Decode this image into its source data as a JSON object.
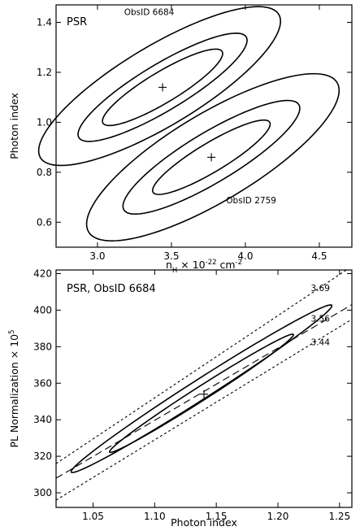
{
  "chart_data": [
    {
      "type": "contour",
      "title": "PSR",
      "xlabel": {
        "main": "n",
        "sub": "H",
        "mid": " × 10",
        "sup1": "-22",
        "unit": " cm",
        "sup2": "-2"
      },
      "ylabel": "Photon index",
      "xlim": [
        2.72,
        4.72
      ],
      "ylim": [
        0.5,
        1.47
      ],
      "xticks": [
        3.0,
        3.5,
        4.0,
        4.5
      ],
      "xticklabels": [
        "3.0",
        "3.5",
        "4.0",
        "4.5"
      ],
      "yticks": [
        0.6,
        0.8,
        1.0,
        1.2,
        1.4
      ],
      "yticklabels": [
        "0.6",
        "0.8",
        "1.0",
        "1.2",
        "1.4"
      ],
      "series": [
        {
          "name": "ObsID 6684",
          "best_fit": [
            3.44,
            1.14
          ],
          "contours": [
            {
              "cx": 3.44,
              "cy": 1.14,
              "rx": 0.47,
              "ry": 0.062,
              "angle": -31
            },
            {
              "cx": 3.44,
              "cy": 1.14,
              "rx": 0.66,
              "ry": 0.093,
              "angle": -31
            },
            {
              "cx": 3.42,
              "cy": 1.145,
              "rx": 0.94,
              "ry": 0.16,
              "angle": -31
            }
          ]
        },
        {
          "name": "ObsID 2759",
          "best_fit": [
            3.77,
            0.86
          ],
          "contours": [
            {
              "cx": 3.77,
              "cy": 0.86,
              "rx": 0.46,
              "ry": 0.058,
              "angle": -31
            },
            {
              "cx": 3.77,
              "cy": 0.86,
              "rx": 0.69,
              "ry": 0.1,
              "angle": -31
            },
            {
              "cx": 3.78,
              "cy": 0.86,
              "rx": 0.98,
              "ry": 0.175,
              "angle": -31
            }
          ]
        }
      ],
      "annotations": [
        {
          "text": "ObsID 6684",
          "x": 3.18,
          "y": 1.43
        },
        {
          "text": "ObsID 2759",
          "x": 3.87,
          "y": 0.675
        }
      ]
    },
    {
      "type": "contour",
      "title": "PSR, ObsID 6684",
      "xlabel": "Photon index",
      "ylabel": {
        "main": "PL Normalization × 10",
        "sup": "5"
      },
      "xlim": [
        1.02,
        1.26
      ],
      "ylim": [
        292,
        422
      ],
      "xticks": [
        1.05,
        1.1,
        1.15,
        1.2,
        1.25
      ],
      "xticklabels": [
        "1.05",
        "1.10",
        "1.15",
        "1.20",
        "1.25"
      ],
      "yticks": [
        300,
        320,
        340,
        360,
        380,
        400,
        420
      ],
      "yticklabels": [
        "300",
        "320",
        "340",
        "360",
        "380",
        "400",
        "420"
      ],
      "best_fit": [
        1.14,
        354
      ],
      "contours": [
        {
          "cx": 1.138,
          "cy": 354.5,
          "rx": 0.0885,
          "ry": 3.8,
          "angle": -32.6
        },
        {
          "cx": 1.138,
          "cy": 357.0,
          "rx": 0.1255,
          "ry": 5.4,
          "angle": -32.6
        }
      ],
      "nh_lines": [
        {
          "label": "3.69",
          "style": "dotted",
          "points": [
            [
              1.02,
              316
            ],
            [
              1.26,
              424
            ]
          ]
        },
        {
          "label": "3.56",
          "style": "dashed",
          "points": [
            [
              1.02,
              308
            ],
            [
              1.26,
              403
            ]
          ]
        },
        {
          "label": "3.44",
          "style": "dotted",
          "points": [
            [
              1.02,
              296
            ],
            [
              1.26,
              395
            ]
          ]
        }
      ]
    }
  ]
}
